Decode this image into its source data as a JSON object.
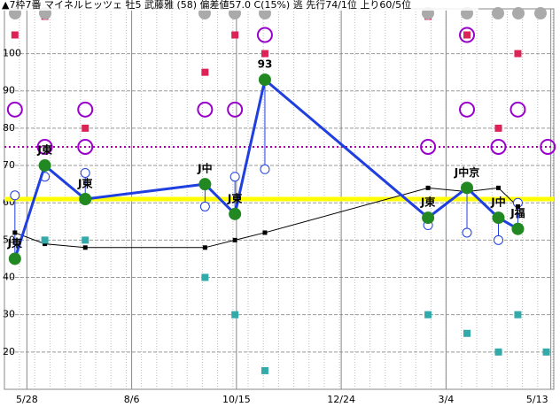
{
  "chart_data": {
    "type": "line",
    "title": "▲7枠7番 マイネルヒッツェ 牡5 武藤雅 (58) 偏差値57.0 C(15%) 逃 先行74/1位 上り60/5位",
    "xlim": [
      -15,
      352
    ],
    "ylim": [
      10,
      112
    ],
    "xticks": [
      {
        "value": 0,
        "label": "5/28"
      },
      {
        "value": 70,
        "label": "8/6"
      },
      {
        "value": 140,
        "label": "10/15"
      },
      {
        "value": 210,
        "label": "12/24"
      },
      {
        "value": 280,
        "label": "3/4"
      },
      {
        "value": 350,
        "label": "5/13"
      }
    ],
    "yticks": [
      20,
      30,
      40,
      50,
      60,
      70,
      80,
      90,
      100
    ],
    "grid": true,
    "reference_lines": [
      {
        "value": 61,
        "color": "#ffff00"
      },
      {
        "value": 75,
        "color": "#aa00aa"
      }
    ],
    "series": [
      {
        "name": "main",
        "color": "#1f3fe0",
        "x": [
          -8,
          12,
          39,
          119,
          139,
          159,
          268,
          294,
          315,
          328
        ],
        "values": [
          45,
          70,
          61,
          65,
          57,
          93,
          56,
          64,
          56,
          53
        ],
        "point_labels": [
          "J東",
          "J東",
          "J東",
          "J中",
          "J東",
          "93",
          "J東",
          "J中京",
          "J中",
          "J福"
        ]
      },
      {
        "name": "sub",
        "color": "#1f3fe0",
        "x": [
          -8,
          12,
          39,
          119,
          139,
          159,
          268,
          294,
          315,
          328
        ],
        "values": [
          62,
          67,
          68,
          59,
          67,
          69,
          54,
          52,
          50,
          60
        ]
      },
      {
        "name": "pace",
        "color": "#000000",
        "x": [
          -8,
          12,
          39,
          119,
          139,
          159,
          268,
          294,
          315,
          328
        ],
        "values": [
          52,
          49,
          48,
          48,
          50,
          52,
          64,
          63,
          64,
          59
        ]
      },
      {
        "name": "upper",
        "color": "#dd2255",
        "x": [
          -8,
          12,
          39,
          119,
          139,
          159,
          268,
          294,
          315,
          328
        ],
        "values": [
          105,
          110,
          80,
          95,
          105,
          100,
          110,
          105,
          80,
          100
        ]
      },
      {
        "name": "lower",
        "color": "#33aaaa",
        "x": [
          12,
          39,
          119,
          139,
          159,
          268,
          294,
          315,
          328,
          347
        ],
        "values": [
          50,
          50,
          40,
          30,
          15,
          30,
          25,
          20,
          30,
          20
        ]
      },
      {
        "name": "ring",
        "color": "#9900cc",
        "x": [
          -8,
          12,
          39,
          39,
          119,
          139,
          159,
          268,
          294,
          294,
          315,
          328,
          348
        ],
        "values": [
          85,
          75,
          75,
          85,
          85,
          85,
          105,
          75,
          85,
          105,
          75,
          85,
          75
        ]
      }
    ]
  }
}
